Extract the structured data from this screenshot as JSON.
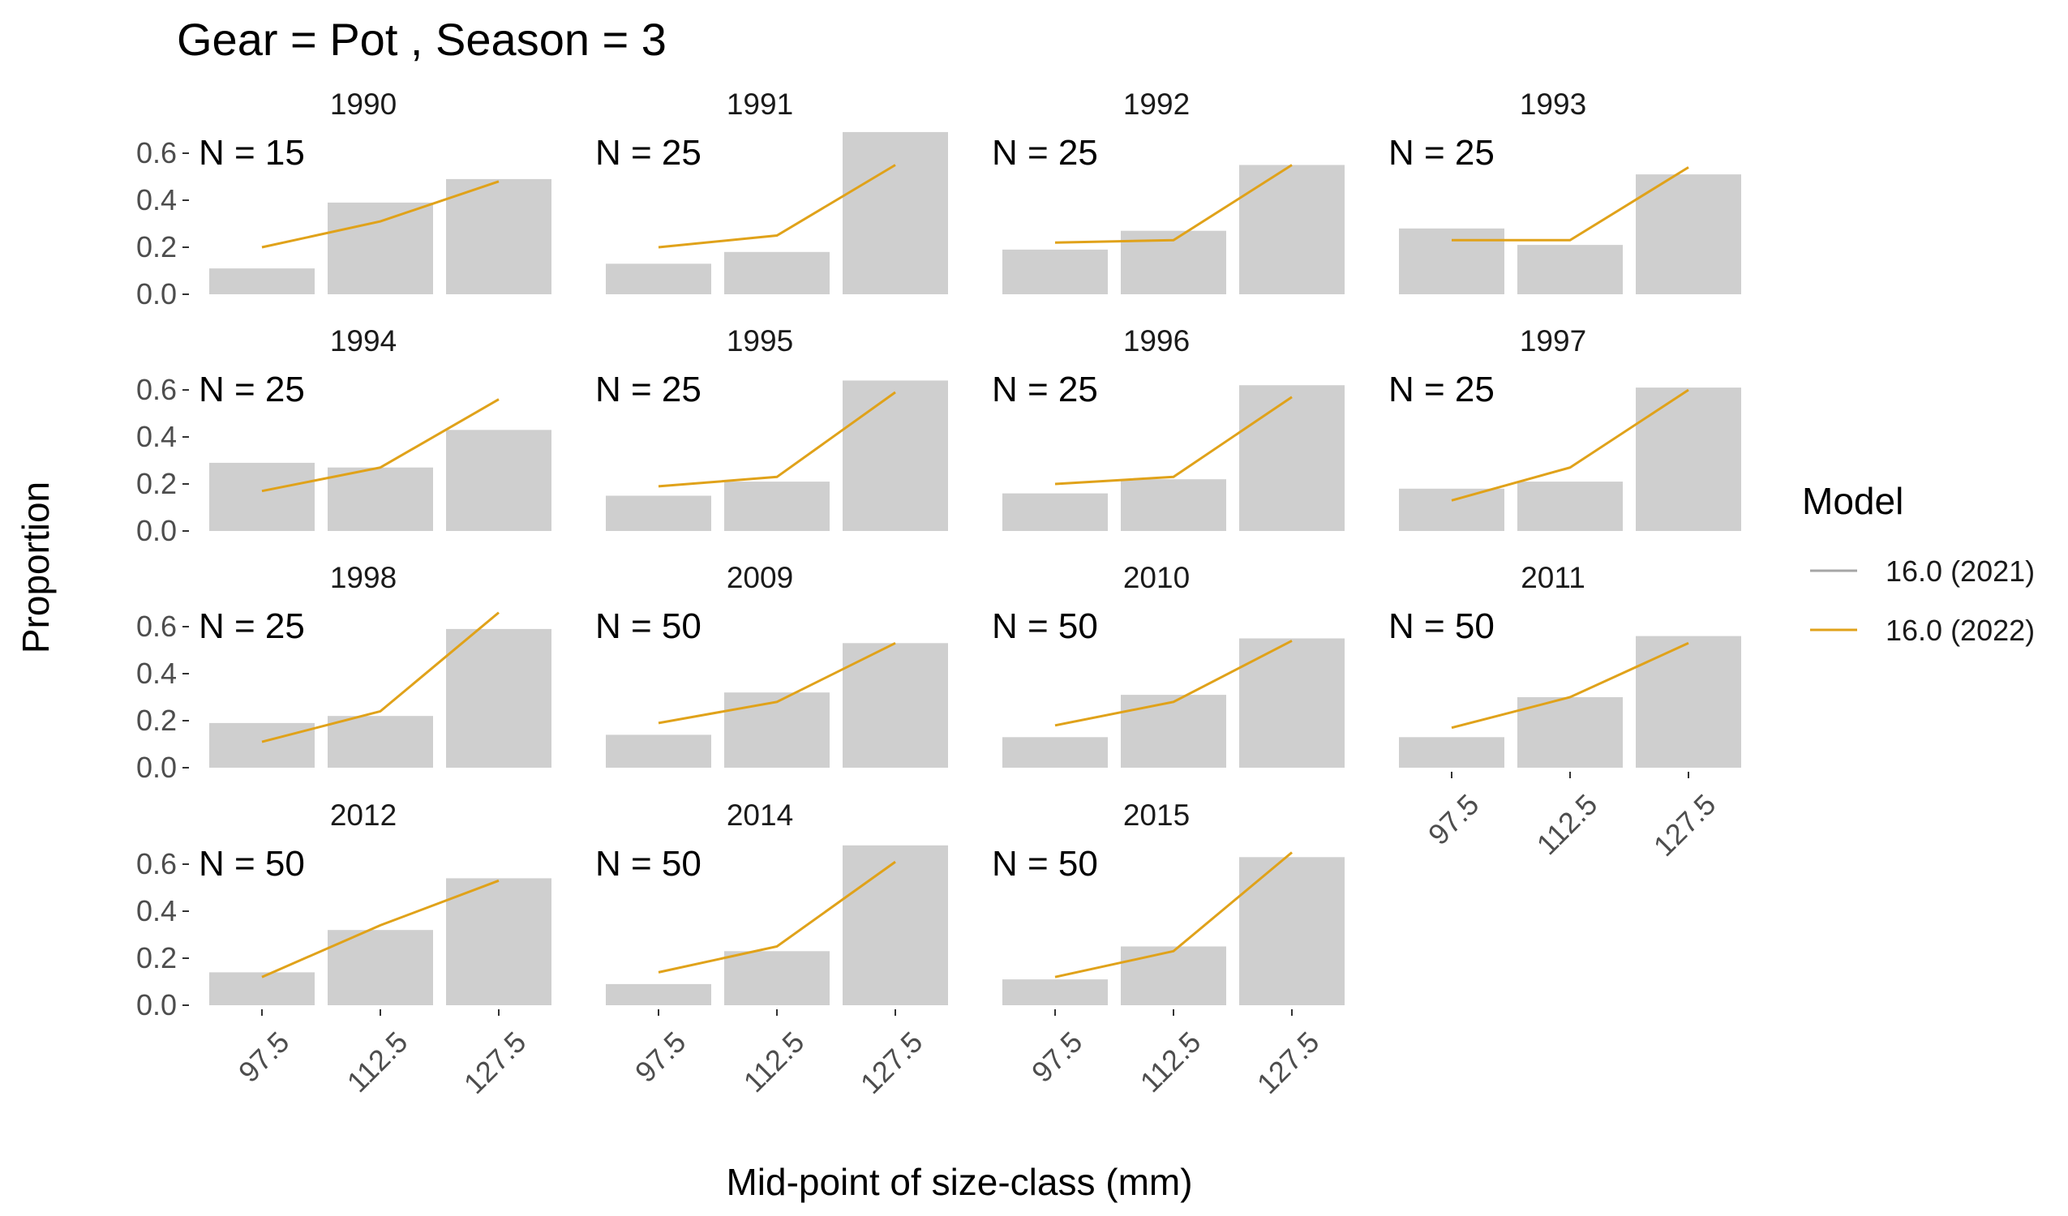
{
  "chart_data": {
    "type": "bar",
    "title": "Gear = Pot , Season = 3",
    "xlabel": "Mid-point of size-class (mm)",
    "ylabel": "Proportion",
    "ylim": [
      0,
      0.7
    ],
    "yticks": [
      "0.0",
      "0.2",
      "0.4",
      "0.6"
    ],
    "ytick_values": [
      0,
      0.2,
      0.4,
      0.6
    ],
    "categories": [
      "97.5",
      "112.5",
      "127.5"
    ],
    "grid": false,
    "legend": {
      "title": "Model",
      "placement": "right",
      "entries": [
        {
          "name": "16.0 (2021)",
          "color": "#a6a6a6"
        },
        {
          "name": "16.0 (2022)",
          "color": "#e0a21a"
        }
      ]
    },
    "bar_color": "#cfcfcf",
    "n_prefix": "N = ",
    "panels": [
      {
        "year": "1990",
        "n": "15",
        "observed": [
          0.11,
          0.39,
          0.49
        ],
        "model_2022": [
          0.2,
          0.31,
          0.48
        ]
      },
      {
        "year": "1991",
        "n": "25",
        "observed": [
          0.13,
          0.18,
          0.69
        ],
        "model_2022": [
          0.2,
          0.25,
          0.55
        ]
      },
      {
        "year": "1992",
        "n": "25",
        "observed": [
          0.19,
          0.27,
          0.55
        ],
        "model_2022": [
          0.22,
          0.23,
          0.55
        ]
      },
      {
        "year": "1993",
        "n": "25",
        "observed": [
          0.28,
          0.21,
          0.51
        ],
        "model_2022": [
          0.23,
          0.23,
          0.54
        ]
      },
      {
        "year": "1994",
        "n": "25",
        "observed": [
          0.29,
          0.27,
          0.43
        ],
        "model_2022": [
          0.17,
          0.27,
          0.56
        ]
      },
      {
        "year": "1995",
        "n": "25",
        "observed": [
          0.15,
          0.21,
          0.64
        ],
        "model_2022": [
          0.19,
          0.23,
          0.59
        ]
      },
      {
        "year": "1996",
        "n": "25",
        "observed": [
          0.16,
          0.22,
          0.62
        ],
        "model_2022": [
          0.2,
          0.23,
          0.57
        ]
      },
      {
        "year": "1997",
        "n": "25",
        "observed": [
          0.18,
          0.21,
          0.61
        ],
        "model_2022": [
          0.13,
          0.27,
          0.6
        ]
      },
      {
        "year": "1998",
        "n": "25",
        "observed": [
          0.19,
          0.22,
          0.59
        ],
        "model_2022": [
          0.11,
          0.24,
          0.66
        ]
      },
      {
        "year": "2009",
        "n": "50",
        "observed": [
          0.14,
          0.32,
          0.53
        ],
        "model_2022": [
          0.19,
          0.28,
          0.53
        ]
      },
      {
        "year": "2010",
        "n": "50",
        "observed": [
          0.13,
          0.31,
          0.55
        ],
        "model_2022": [
          0.18,
          0.28,
          0.54
        ]
      },
      {
        "year": "2011",
        "n": "50",
        "observed": [
          0.13,
          0.3,
          0.56
        ],
        "model_2022": [
          0.17,
          0.3,
          0.53
        ]
      },
      {
        "year": "2012",
        "n": "50",
        "observed": [
          0.14,
          0.32,
          0.54
        ],
        "model_2022": [
          0.12,
          0.34,
          0.53
        ]
      },
      {
        "year": "2014",
        "n": "50",
        "observed": [
          0.09,
          0.23,
          0.68
        ],
        "model_2022": [
          0.14,
          0.25,
          0.61
        ]
      },
      {
        "year": "2015",
        "n": "50",
        "observed": [
          0.11,
          0.25,
          0.63
        ],
        "model_2022": [
          0.12,
          0.23,
          0.65
        ]
      }
    ]
  }
}
